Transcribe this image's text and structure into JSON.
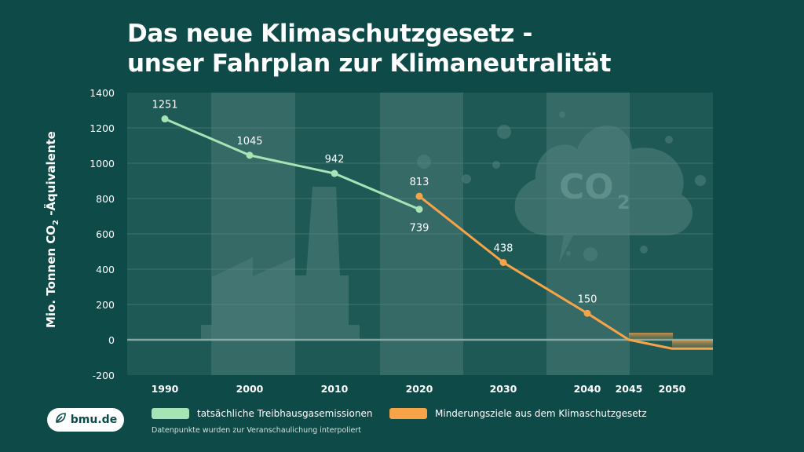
{
  "header": {
    "title_line1": "Das neue Klimaschutzgesetz -",
    "title_line2": "unser Fahrplan zur Klimaneutralität"
  },
  "axis": {
    "ylabel_main": "Mio. Tonnen CO",
    "ylabel_sub": "2",
    "ylabel_rest": " -Äquivalente"
  },
  "illustration": {
    "cloud_text": "CO",
    "cloud_sub": "2"
  },
  "legend": {
    "actual_label": "tatsächliche Treibhausgasemissionen",
    "target_label": "Minderungsziele aus dem Klimaschutzgesetz",
    "note": "Datenpunkte wurden zur Veranschaulichung interpoliert"
  },
  "logo": {
    "text": "bmu.de"
  },
  "colors": {
    "background": "#0d4a48",
    "plot_bg": "#1f5956",
    "plot_band": "#366a67",
    "actual": "#a6e3b5",
    "target": "#f7a348",
    "grid": "#5d8985"
  },
  "chart_data": {
    "type": "line",
    "title": "Das neue Klimaschutzgesetz - unser Fahrplan zur Klimaneutralität",
    "ylabel": "Mio. Tonnen CO2 -Äquivalente",
    "ylim": [
      -200,
      1400
    ],
    "yticks": [
      1400,
      1200,
      1000,
      800,
      600,
      400,
      200,
      0,
      -200
    ],
    "xticks": [
      "1990",
      "2000",
      "2010",
      "2020",
      "2030",
      "2040",
      "2045",
      "2050"
    ],
    "grid": true,
    "series": [
      {
        "name": "tatsächliche Treibhausgasemissionen",
        "x": [
          1990,
          2000,
          2010,
          2020
        ],
        "values": [
          1251,
          1045,
          942,
          739
        ],
        "labels": [
          "1251",
          "1045",
          "942",
          "739"
        ]
      },
      {
        "name": "Minderungsziele aus dem Klimaschutzgesetz",
        "x": [
          2020,
          2030,
          2040,
          2045,
          2050
        ],
        "values": [
          813,
          438,
          150,
          0,
          -50
        ],
        "labels": [
          "813",
          "438",
          "150",
          "",
          ""
        ]
      }
    ]
  }
}
